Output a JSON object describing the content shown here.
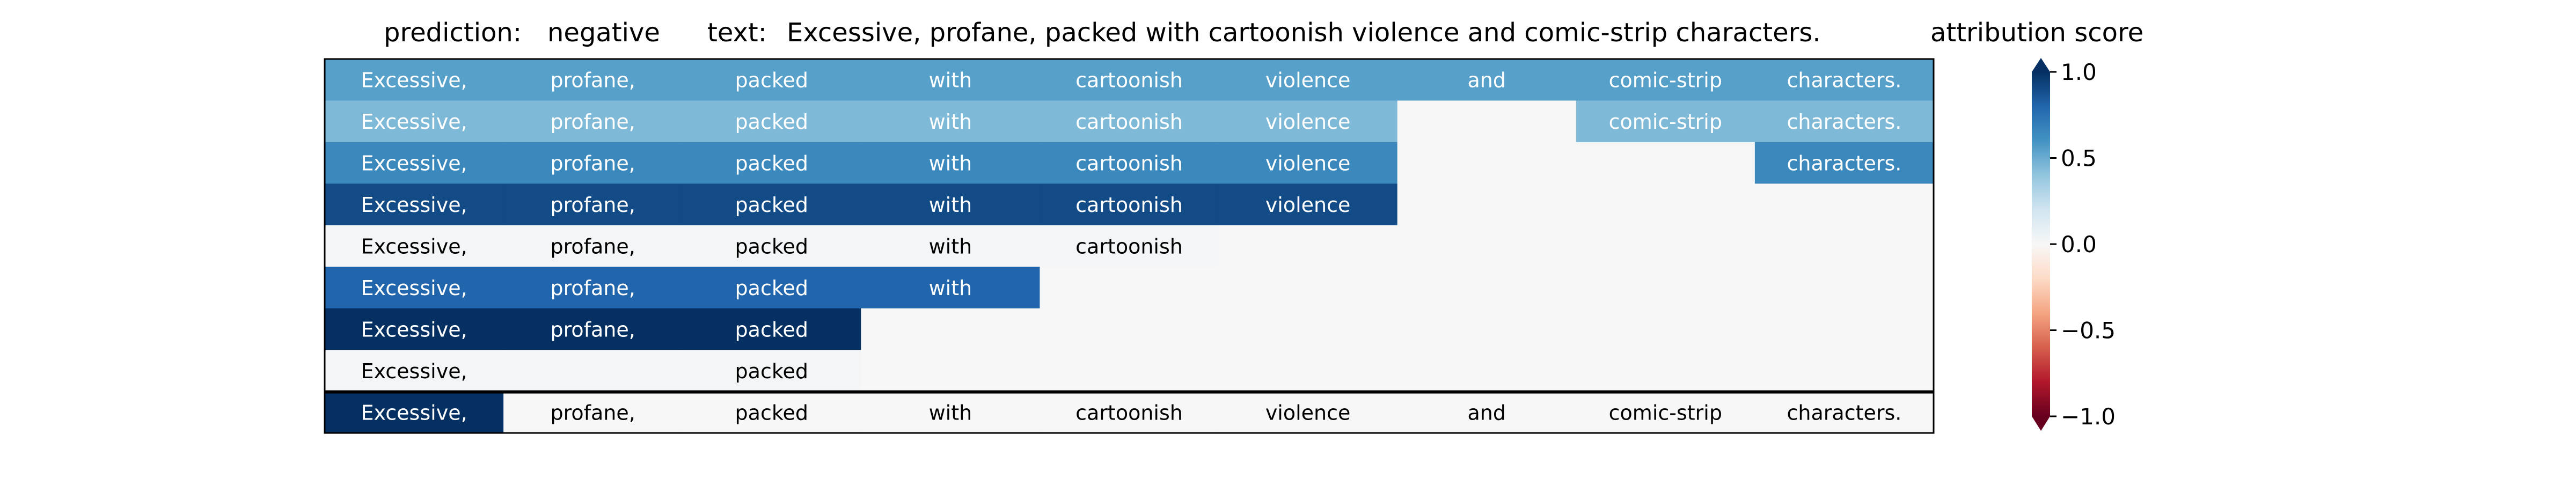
{
  "header": {
    "prediction_label": "prediction:",
    "prediction_value": "negative",
    "text_label": "text:",
    "text_value": "Excessive, profane, packed with cartoonish violence and comic-strip characters."
  },
  "colorbar": {
    "title": "attribution score",
    "ticks": [
      "1.0",
      "0.5",
      "0.0",
      "−0.5",
      "−1.0"
    ],
    "tick_values": [
      1.0,
      0.5,
      0.0,
      -0.5,
      -1.0
    ],
    "range": [
      -1.0,
      1.0
    ],
    "colors_low_to_high": [
      "#67001f",
      "#b2182b",
      "#d6604d",
      "#f4a582",
      "#fddbc7",
      "#f7f7f7",
      "#d1e5f0",
      "#92c5de",
      "#4393c3",
      "#2166ac",
      "#053061"
    ]
  },
  "chart_data": {
    "type": "heatmap",
    "title": "",
    "colormap": "RdBu",
    "vmin": -1.0,
    "vmax": 1.0,
    "tokens": [
      "Excessive,",
      "profane,",
      "packed",
      "with",
      "cartoonish",
      "violence",
      "and",
      "comic-strip",
      "characters."
    ],
    "rows": [
      [
        0.55,
        0.55,
        0.55,
        0.55,
        0.55,
        0.55,
        0.55,
        0.55,
        0.55
      ],
      [
        0.45,
        0.45,
        0.45,
        0.45,
        0.45,
        0.45,
        0.0,
        0.45,
        0.45
      ],
      [
        0.65,
        0.65,
        0.65,
        0.65,
        0.65,
        0.65,
        0.0,
        0.0,
        0.65
      ],
      [
        0.9,
        0.9,
        0.9,
        0.9,
        0.9,
        0.9,
        0.0,
        0.0,
        0.0
      ],
      [
        0.02,
        0.02,
        0.02,
        0.02,
        0.02,
        0.0,
        0.0,
        0.0,
        0.0
      ],
      [
        0.8,
        0.8,
        0.8,
        0.8,
        0.0,
        0.0,
        0.0,
        0.0,
        0.0
      ],
      [
        1.0,
        1.0,
        1.0,
        0.0,
        0.0,
        0.0,
        0.0,
        0.0,
        0.0
      ],
      [
        0.02,
        0.02,
        0.02,
        0.0,
        0.0,
        0.0,
        0.0,
        0.0,
        0.0
      ],
      [
        1.0,
        0.0,
        0.0,
        0.0,
        0.0,
        0.0,
        0.0,
        0.0,
        0.0
      ]
    ],
    "visible_words": [
      [
        true,
        true,
        true,
        true,
        true,
        true,
        true,
        true,
        true
      ],
      [
        true,
        true,
        true,
        true,
        true,
        true,
        false,
        true,
        true
      ],
      [
        true,
        true,
        true,
        true,
        true,
        true,
        false,
        false,
        true
      ],
      [
        true,
        true,
        true,
        true,
        true,
        true,
        false,
        false,
        false
      ],
      [
        true,
        true,
        true,
        true,
        true,
        false,
        false,
        false,
        false
      ],
      [
        true,
        true,
        true,
        true,
        false,
        false,
        false,
        false,
        false
      ],
      [
        true,
        true,
        true,
        false,
        false,
        false,
        false,
        false,
        false
      ],
      [
        true,
        false,
        true,
        false,
        false,
        false,
        false,
        false,
        false
      ],
      [
        true,
        true,
        true,
        true,
        true,
        true,
        true,
        true,
        true
      ]
    ]
  }
}
